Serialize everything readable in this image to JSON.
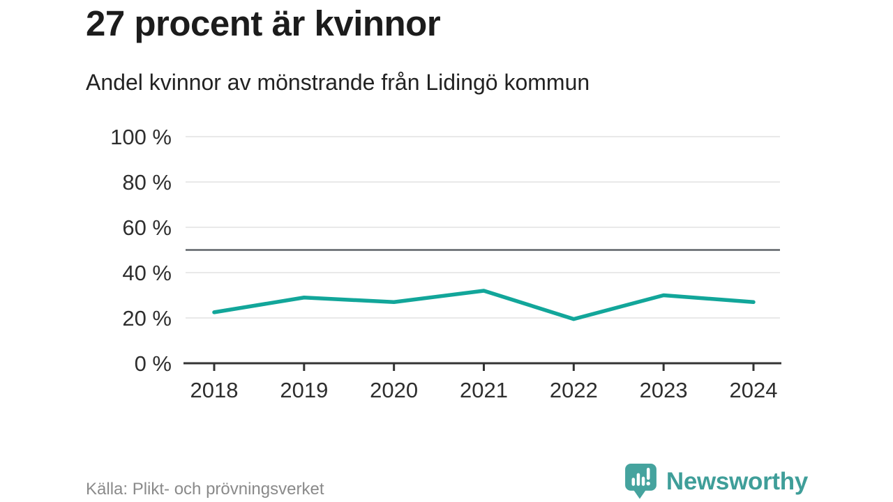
{
  "header": {
    "title": "27 procent är kvinnor",
    "subtitle": "Andel kvinnor av mönstrande från Lidingö kommun"
  },
  "chart_data": {
    "type": "line",
    "categories": [
      "2018",
      "2019",
      "2020",
      "2021",
      "2022",
      "2023",
      "2024"
    ],
    "series": [
      {
        "name": "Andel kvinnor",
        "values": [
          22.5,
          29,
          27,
          32,
          19.5,
          30,
          27
        ]
      }
    ],
    "title": "27 procent är kvinnor",
    "subtitle": "Andel kvinnor av mönstrande från Lidingö kommun",
    "xlabel": "",
    "ylabel": "",
    "ylim": [
      0,
      100
    ],
    "y_ticks": [
      0,
      20,
      40,
      60,
      80,
      100
    ],
    "y_tick_suffix": " %",
    "reference_line": 50,
    "grid": true,
    "legend_position": "none",
    "line_color": "#12a69a",
    "grid_color": "#e9e9e9",
    "reference_line_color": "#5f6368",
    "axis_color": "#333333",
    "tick_label_color": "#2e2e2e"
  },
  "footer": {
    "source": "Källa: Plikt- och prövningsverket",
    "brand": "Newsworthy",
    "brand_color": "#3f9e99"
  }
}
